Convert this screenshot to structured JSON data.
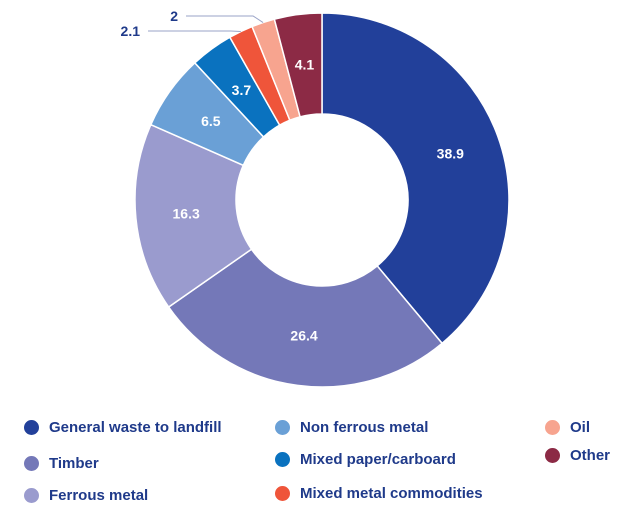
{
  "chart_data": {
    "type": "pie",
    "variant": "donut",
    "title": "",
    "categories": [
      "General waste to landfill",
      "Timber",
      "Ferrous metal",
      "Non ferrous metal",
      "Mixed paper/carboard",
      "Mixed metal commodities",
      "Oil",
      "Other"
    ],
    "values": [
      38.9,
      26.4,
      16.3,
      6.5,
      3.7,
      2.1,
      2,
      4.1
    ],
    "value_labels": [
      "38.9",
      "26.4",
      "16.3",
      "6.5",
      "3.7",
      "2.1",
      "2",
      "4.1"
    ],
    "colors": [
      "#22409a",
      "#7478b8",
      "#9a9bce",
      "#6aa0d6",
      "#0a72bf",
      "#ef553a",
      "#f7a48f",
      "#8c2a45"
    ],
    "legend": {
      "placement": "bottom"
    }
  }
}
